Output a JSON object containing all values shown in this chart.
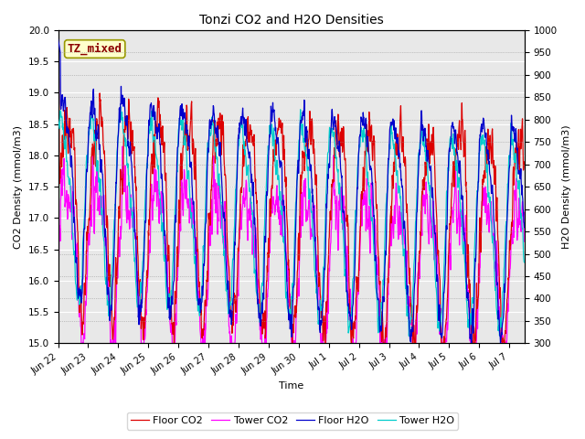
{
  "title": "Tonzi CO2 and H2O Densities",
  "xlabel": "Time",
  "ylabel_left": "CO2 Density (mmol/m3)",
  "ylabel_right": "H2O Density (mmol/m3)",
  "ylim_left": [
    15.0,
    20.0
  ],
  "ylim_right": [
    300,
    1000
  ],
  "annotation_text": "TZ_mixed",
  "bg_color": "#e8e8e8",
  "fig_bg": "#ffffff",
  "colors": {
    "floor_co2": "#dd0000",
    "tower_co2": "#ff00ff",
    "floor_h2o": "#0000cc",
    "tower_h2o": "#00cccc"
  },
  "legend_labels": [
    "Floor CO2",
    "Tower CO2",
    "Floor H2O",
    "Tower H2O"
  ],
  "n_days": 15.5,
  "yticks_left": [
    15.0,
    15.5,
    16.0,
    16.5,
    17.0,
    17.5,
    18.0,
    18.5,
    19.0,
    19.5,
    20.0
  ],
  "yticks_right": [
    300,
    350,
    400,
    450,
    500,
    550,
    600,
    650,
    700,
    750,
    800,
    850,
    900,
    950,
    1000
  ],
  "xtick_labels": [
    "Jun 22",
    "Jun 23",
    "Jun 24",
    "Jun 25",
    "Jun 26",
    "Jun 27",
    "Jun 28",
    "Jun 29",
    "Jun 30",
    "Jul 1",
    "Jul 2",
    "Jul 3",
    "Jul 4",
    "Jul 5",
    "Jul 6",
    "Jul 7"
  ],
  "xtick_positions": [
    0,
    1,
    2,
    3,
    4,
    5,
    6,
    7,
    8,
    9,
    10,
    11,
    12,
    13,
    14,
    15
  ]
}
